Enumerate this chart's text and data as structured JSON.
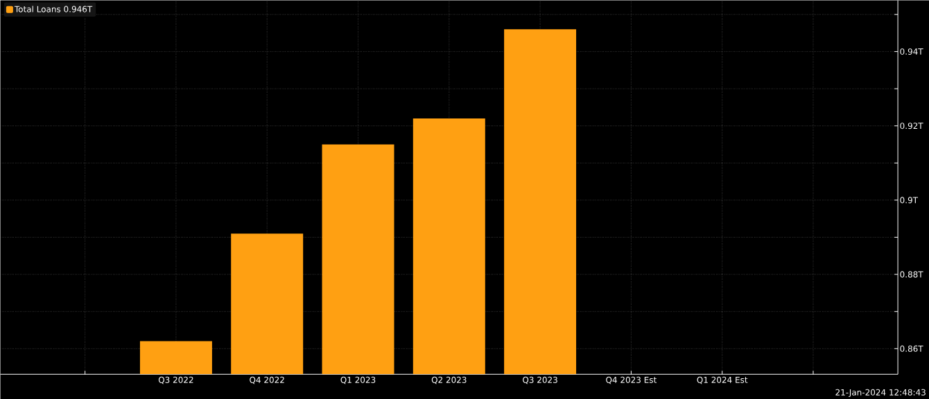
{
  "chart_data": {
    "type": "bar",
    "categories": [
      null,
      "Q3 2022",
      "Q4 2022",
      "Q1 2023",
      "Q2 2023",
      "Q3 2023",
      "Q4 2023 Est",
      "Q1 2024 Est",
      null
    ],
    "series": [
      {
        "name": "Total Loans 0.946T",
        "color": "#ffa012",
        "values": [
          null,
          0.862,
          0.891,
          0.915,
          0.922,
          0.946,
          null,
          null,
          null
        ]
      }
    ],
    "ylim": [
      0.8531,
      0.9538
    ],
    "yticks": [
      {
        "value": 0.86,
        "label": "0.86T"
      },
      {
        "value": 0.87,
        "label": null
      },
      {
        "value": 0.88,
        "label": "0.88T"
      },
      {
        "value": 0.89,
        "label": null
      },
      {
        "value": 0.9,
        "label": "0.9T"
      },
      {
        "value": 0.91,
        "label": null
      },
      {
        "value": 0.92,
        "label": "0.92T"
      },
      {
        "value": 0.93,
        "label": null
      },
      {
        "value": 0.94,
        "label": "0.94T"
      },
      {
        "value": 0.95,
        "label": null
      }
    ],
    "grid": true,
    "legend": "top left",
    "annotations": [
      "21-Jan-2024 12:48:43"
    ]
  }
}
